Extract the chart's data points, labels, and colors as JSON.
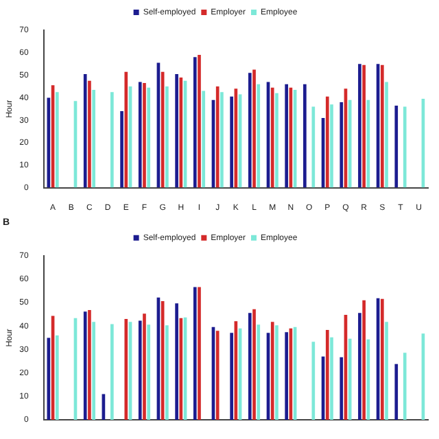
{
  "chart_data": [
    {
      "type": "bar",
      "categories": [
        "A",
        "B",
        "C",
        "D",
        "E",
        "F",
        "G",
        "H",
        "I",
        "J",
        "K",
        "L",
        "M",
        "N",
        "O",
        "P",
        "Q",
        "R",
        "S",
        "T",
        "U"
      ],
      "ylabel": "Hour",
      "ylim": [
        0,
        70
      ],
      "yticks": [
        0,
        10,
        20,
        30,
        40,
        50,
        60,
        70
      ],
      "grid": false,
      "legend": "top",
      "series": [
        {
          "name": "Self-employed",
          "color": "#1c1c8f",
          "values": [
            40,
            null,
            50.5,
            null,
            34,
            47,
            55.5,
            50.5,
            58,
            39,
            40.5,
            51,
            47,
            46,
            46,
            31,
            38,
            55,
            55,
            36.5,
            null
          ]
        },
        {
          "name": "Employer",
          "color": "#d42a2a",
          "values": [
            45.5,
            null,
            47.5,
            null,
            51.5,
            46.5,
            51.5,
            49,
            59,
            45,
            44,
            52.5,
            44.5,
            44.5,
            null,
            40.5,
            44,
            54.5,
            54.5,
            null,
            null
          ]
        },
        {
          "name": "Employee",
          "color": "#7de8d8",
          "values": [
            42.5,
            38.5,
            43.5,
            42.5,
            45,
            44.5,
            45,
            47.5,
            43,
            42.5,
            41.5,
            46,
            42,
            43.5,
            36,
            37,
            39,
            39,
            47,
            36,
            39.5
          ]
        }
      ]
    },
    {
      "type": "bar",
      "title": "B",
      "categories": [
        null,
        null,
        null,
        null,
        null,
        null,
        null,
        null,
        null,
        null,
        null,
        null,
        null,
        null,
        null,
        null,
        null,
        null,
        null,
        null,
        null
      ],
      "ylabel": "Hour",
      "ylim": [
        0,
        70
      ],
      "yticks": [
        0,
        10,
        20,
        30,
        40,
        50,
        60,
        70
      ],
      "grid": false,
      "legend": "top",
      "tick_labels": "y",
      "series": [
        {
          "name": "Self-employed",
          "color": "#1c1c8f",
          "values": [
            35,
            null,
            46.2,
            11,
            null,
            42.3,
            52.2,
            49.7,
            56.6,
            39.6,
            37.1,
            45.6,
            37.1,
            37.4,
            null,
            27,
            26.7,
            45.6,
            51.9,
            23.8,
            null
          ]
        },
        {
          "name": "Employer",
          "color": "#d42a2a",
          "values": [
            44.3,
            null,
            46.8,
            null,
            43,
            45.3,
            50.6,
            43.4,
            56.6,
            38,
            42.1,
            47.2,
            41.8,
            39,
            null,
            38.3,
            44.8,
            51,
            51.6,
            null,
            null
          ]
        },
        {
          "name": "Employee",
          "color": "#7de8d8",
          "values": [
            36,
            43.4,
            41.8,
            40.8,
            41.8,
            40.6,
            40.3,
            43.7,
            null,
            null,
            39,
            40.6,
            40.3,
            39.6,
            33.3,
            35.2,
            34.6,
            34.3,
            41.8,
            28.6,
            36.8
          ]
        }
      ]
    }
  ]
}
